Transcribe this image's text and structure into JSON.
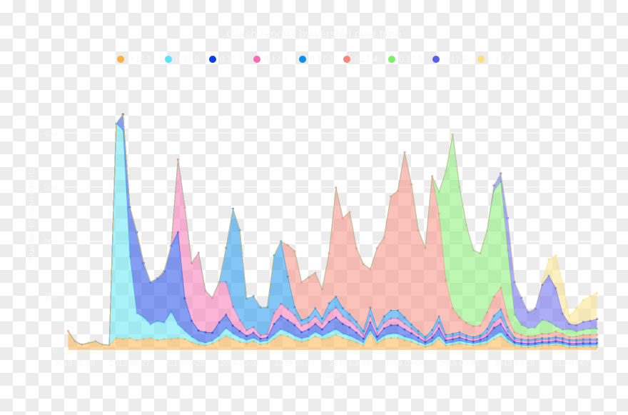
{
  "chart_data": {
    "type": "area",
    "stacked": true,
    "title": "Crash reports by version over time",
    "xlabel": "Date",
    "ylabel": "Number of crash reports",
    "ylim": [
      0,
      440
    ],
    "yticks": [
      "0",
      "100",
      "200",
      "300",
      "400"
    ],
    "xticks": [
      "2019-02-26",
      "2019-02-27",
      "2019-02-28",
      "2019-03-01",
      "2019-03-02",
      "2019-03-03",
      "2019-03-04",
      "2019-03-05",
      "2019-03-06",
      "2019-03-07"
    ],
    "grid": true,
    "legend_position": "top",
    "x": [
      "2019-02-25 21:00",
      "2019-02-26 00:00",
      "2019-02-26 03:00",
      "2019-02-26 06:00",
      "2019-02-26 09:00",
      "2019-02-26 12:00",
      "2019-02-26 15:00",
      "2019-02-26 18:00",
      "2019-02-26 21:00",
      "2019-02-27 00:00",
      "2019-02-27 03:00",
      "2019-02-27 06:00",
      "2019-02-27 09:00",
      "2019-02-27 12:00",
      "2019-02-27 15:00",
      "2019-02-27 18:00",
      "2019-02-27 21:00",
      "2019-02-28 00:00",
      "2019-02-28 03:00",
      "2019-02-28 06:00",
      "2019-02-28 09:00",
      "2019-02-28 12:00",
      "2019-02-28 15:00",
      "2019-02-28 18:00",
      "2019-02-28 21:00",
      "2019-03-01 00:00",
      "2019-03-01 03:00",
      "2019-03-01 06:00",
      "2019-03-01 09:00",
      "2019-03-01 12:00",
      "2019-03-01 15:00",
      "2019-03-01 18:00",
      "2019-03-01 21:00",
      "2019-03-02 00:00",
      "2019-03-02 03:00",
      "2019-03-02 06:00",
      "2019-03-02 09:00",
      "2019-03-02 12:00",
      "2019-03-02 15:00",
      "2019-03-02 18:00",
      "2019-03-02 21:00",
      "2019-03-03 00:00",
      "2019-03-03 03:00",
      "2019-03-03 06:00",
      "2019-03-03 09:00",
      "2019-03-03 12:00",
      "2019-03-03 15:00",
      "2019-03-03 18:00",
      "2019-03-03 21:00",
      "2019-03-04 00:00",
      "2019-03-04 03:00",
      "2019-03-04 06:00",
      "2019-03-04 09:00",
      "2019-03-04 12:00",
      "2019-03-04 15:00",
      "2019-03-04 18:00",
      "2019-03-04 21:00",
      "2019-03-05 00:00",
      "2019-03-05 03:00",
      "2019-03-05 06:00",
      "2019-03-05 09:00",
      "2019-03-05 12:00",
      "2019-03-05 15:00",
      "2019-03-05 18:00",
      "2019-03-05 21:00",
      "2019-03-06 00:00",
      "2019-03-06 03:00",
      "2019-03-06 06:00",
      "2019-03-06 09:00",
      "2019-03-06 12:00",
      "2019-03-06 15:00",
      "2019-03-06 18:00",
      "2019-03-06 21:00",
      "2019-03-07 00:00",
      "2019-03-07 03:00",
      "2019-03-07 06:00",
      "2019-03-07 09:00",
      "2019-03-07 12:00"
    ],
    "series": [
      {
        "name": "0.16.1",
        "color": "#fbb040",
        "values": [
          35,
          16,
          10,
          13,
          16,
          10,
          9,
          22,
          20,
          22,
          18,
          20,
          22,
          18,
          20,
          20,
          22,
          20,
          14,
          10,
          8,
          12,
          18,
          25,
          20,
          15,
          12,
          16,
          10,
          12,
          20,
          28,
          25,
          18,
          15,
          18,
          25,
          20,
          22,
          28,
          22,
          18,
          14,
          8,
          30,
          12,
          20,
          22,
          22,
          18,
          15,
          10,
          6,
          10,
          20,
          8,
          10,
          12,
          10,
          8,
          10,
          12,
          20,
          25,
          15,
          8,
          6,
          5,
          6,
          8,
          8,
          10,
          8,
          5,
          5,
          6,
          6,
          6
        ]
      },
      {
        "name": "0.17.0",
        "color": "#55e6f5",
        "values": [
          0,
          0,
          0,
          0,
          0,
          0,
          0,
          395,
          385,
          150,
          50,
          40,
          25,
          35,
          30,
          50,
          25,
          15,
          10,
          6,
          5,
          5,
          8,
          15,
          10,
          8,
          6,
          6,
          5,
          5,
          8,
          10,
          8,
          8,
          6,
          6,
          8,
          6,
          10,
          10,
          8,
          8,
          6,
          5,
          6,
          5,
          6,
          8,
          8,
          6,
          6,
          5,
          4,
          5,
          6,
          4,
          4,
          5,
          4,
          4,
          4,
          5,
          6,
          8,
          5,
          3,
          3,
          3,
          3,
          3,
          3,
          3,
          3,
          3,
          3,
          3,
          3,
          3
        ]
      },
      {
        "name": "0.17.1",
        "color": "#0b3ee8",
        "values": [
          0,
          0,
          0,
          0,
          0,
          0,
          0,
          0,
          29,
          91,
          149,
          100,
          78,
          79,
          95,
          122,
          170,
          60,
          30,
          20,
          20,
          15,
          25,
          25,
          15,
          12,
          8,
          10,
          6,
          6,
          20,
          25,
          22,
          20,
          12,
          14,
          15,
          12,
          20,
          22,
          18,
          16,
          12,
          8,
          15,
          8,
          14,
          16,
          16,
          14,
          10,
          8,
          5,
          8,
          14,
          6,
          6,
          6,
          5,
          4,
          5,
          8,
          15,
          15,
          8,
          4,
          4,
          4,
          4,
          4,
          4,
          4,
          4,
          4,
          4,
          4,
          4,
          4
        ]
      },
      {
        "name": "0.17.2",
        "color": "#f76db0",
        "values": [
          0,
          0,
          0,
          0,
          0,
          0,
          0,
          0,
          0,
          0,
          0,
          0,
          0,
          0,
          0,
          0,
          134,
          168,
          106,
          143,
          76,
          64,
          74,
          60,
          35,
          20,
          10,
          10,
          6,
          6,
          20,
          22,
          20,
          18,
          12,
          12,
          14,
          10,
          16,
          18,
          14,
          12,
          10,
          6,
          12,
          6,
          10,
          12,
          12,
          10,
          8,
          6,
          4,
          6,
          10,
          5,
          5,
          5,
          4,
          4,
          4,
          6,
          10,
          12,
          6,
          4,
          4,
          4,
          4,
          4,
          4,
          4,
          4,
          4,
          4,
          4,
          4,
          4
        ]
      },
      {
        "name": "0.17.3",
        "color": "#0a8ff0",
        "values": [
          0,
          0,
          0,
          0,
          0,
          0,
          0,
          0,
          0,
          0,
          0,
          0,
          0,
          0,
          0,
          0,
          0,
          0,
          0,
          0,
          0,
          0,
          0,
          63,
          180,
          166,
          59,
          57,
          52,
          50,
          106,
          115,
          60,
          15,
          10,
          10,
          15,
          10,
          18,
          20,
          15,
          12,
          10,
          8,
          15,
          8,
          12,
          15,
          15,
          12,
          8,
          6,
          5,
          8,
          12,
          5,
          5,
          5,
          4,
          4,
          4,
          8,
          12,
          15,
          8,
          4,
          3,
          3,
          3,
          3,
          3,
          3,
          3,
          3,
          3,
          3,
          3,
          3
        ]
      },
      {
        "name": "0.17.4",
        "color": "#f7857a",
        "values": [
          0,
          0,
          0,
          0,
          0,
          0,
          0,
          0,
          0,
          0,
          0,
          0,
          0,
          0,
          0,
          0,
          0,
          0,
          0,
          0,
          0,
          0,
          0,
          0,
          0,
          0,
          0,
          0,
          0,
          0,
          0,
          0,
          58,
          103,
          70,
          74,
          65,
          54,
          92,
          201,
          166,
          188,
          135,
          123,
          71,
          149,
          145,
          210,
          220,
          304,
          258,
          185,
          164,
          283,
          189,
          101,
          47,
          27,
          23,
          20,
          18,
          30,
          35,
          40,
          20,
          10,
          8,
          6,
          6,
          8,
          8,
          10,
          8,
          5,
          6,
          8,
          8,
          8
        ]
      },
      {
        "name": "0.17.5",
        "color": "#7df06a",
        "values": [
          0,
          0,
          0,
          0,
          0,
          0,
          0,
          0,
          0,
          0,
          0,
          0,
          0,
          0,
          0,
          0,
          0,
          0,
          0,
          0,
          0,
          0,
          0,
          0,
          0,
          0,
          0,
          0,
          0,
          0,
          0,
          0,
          0,
          0,
          0,
          0,
          0,
          0,
          0,
          0,
          0,
          0,
          0,
          0,
          0,
          0,
          0,
          0,
          0,
          0,
          0,
          0,
          0,
          0,
          40,
          200,
          320,
          240,
          180,
          140,
          133,
          151,
          195,
          195,
          121,
          32,
          18,
          15,
          15,
          25,
          22,
          10,
          7,
          14,
          9,
          9,
          11,
          11
        ]
      },
      {
        "name": "0.17.6",
        "color": "#5b5cf0",
        "values": [
          0,
          0,
          0,
          0,
          0,
          0,
          0,
          0,
          0,
          0,
          0,
          0,
          0,
          0,
          0,
          0,
          0,
          0,
          0,
          0,
          0,
          0,
          0,
          0,
          0,
          0,
          0,
          0,
          0,
          0,
          0,
          0,
          0,
          0,
          0,
          0,
          0,
          0,
          0,
          0,
          0,
          0,
          0,
          0,
          0,
          0,
          0,
          0,
          0,
          0,
          0,
          0,
          0,
          0,
          0,
          0,
          0,
          0,
          0,
          0,
          0,
          0,
          10,
          15,
          60,
          60,
          50,
          30,
          35,
          65,
          85,
          70,
          30,
          10,
          12,
          15,
          15,
          18
        ]
      },
      {
        "name": "0.17.7",
        "color": "#f9e17e",
        "values": [
          0,
          0,
          0,
          0,
          0,
          0,
          0,
          0,
          0,
          0,
          0,
          0,
          0,
          0,
          0,
          0,
          0,
          0,
          0,
          0,
          0,
          0,
          0,
          0,
          0,
          0,
          0,
          0,
          0,
          0,
          0,
          0,
          0,
          0,
          0,
          0,
          0,
          0,
          0,
          0,
          0,
          0,
          0,
          0,
          0,
          0,
          0,
          0,
          0,
          0,
          0,
          0,
          0,
          0,
          0,
          0,
          0,
          0,
          0,
          0,
          0,
          0,
          0,
          0,
          0,
          0,
          0,
          0,
          0,
          5,
          30,
          60,
          55,
          15,
          30,
          40,
          45,
          48
        ]
      }
    ]
  }
}
